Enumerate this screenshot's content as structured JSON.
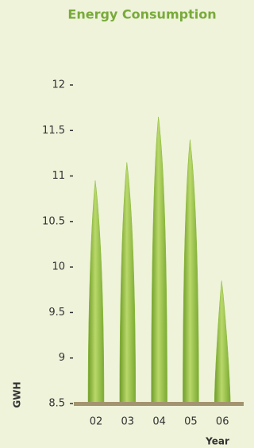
{
  "chart_data": {
    "type": "leaf-bar",
    "title": "Energy Consumption",
    "categories": [
      "02",
      "03",
      "04",
      "05",
      "06"
    ],
    "values": [
      10.95,
      11.15,
      11.65,
      11.4,
      9.85
    ],
    "color": "#8ab83a",
    "ylim": [
      8.5,
      12
    ],
    "yticks": [
      8.5,
      9,
      9.5,
      10,
      10.5,
      11,
      11.5,
      12
    ],
    "x_label": "Year",
    "y_label": "GWH"
  }
}
